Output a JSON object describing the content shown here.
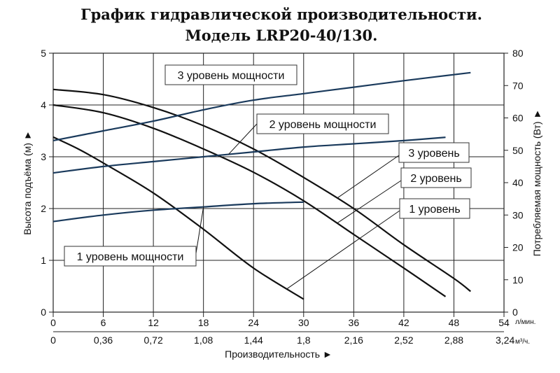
{
  "chart_data": {
    "type": "line",
    "title_line1": "График гидравлической производительности.",
    "title_line2": "Модель LRP20-40/130.",
    "xlabel": "Производительность ►",
    "x_unit_primary": "л/мин.",
    "x_unit_secondary_prefix": "3,24",
    "x_unit_secondary": "м³/ч.",
    "xlim": [
      0,
      54
    ],
    "x_ticks": [
      "0",
      "6",
      "12",
      "18",
      "24",
      "30",
      "36",
      "42",
      "48",
      "54"
    ],
    "x2_ticks": [
      "0",
      "0,36",
      "0,72",
      "1,08",
      "1,44",
      "1,8",
      "2,16",
      "2,52",
      "2,88"
    ],
    "ylabel_left": "Высота подъёма (м) ►",
    "ylim_left": [
      0,
      5
    ],
    "y_ticks_left": [
      "0",
      "1",
      "2",
      "3",
      "4",
      "5"
    ],
    "ylabel_right": "Потребляемая мощность (Вт) ►",
    "ylim_right": [
      0,
      80
    ],
    "y_ticks_right": [
      "0",
      "10",
      "20",
      "30",
      "40",
      "50",
      "60",
      "70",
      "80"
    ],
    "grid": true,
    "series": [
      {
        "name": "3 уровень",
        "kind": "head",
        "axis": "left",
        "points": [
          [
            0,
            4.3
          ],
          [
            6,
            4.2
          ],
          [
            12,
            3.95
          ],
          [
            18,
            3.6
          ],
          [
            24,
            3.15
          ],
          [
            30,
            2.6
          ],
          [
            36,
            2.0
          ],
          [
            42,
            1.3
          ],
          [
            48,
            0.65
          ],
          [
            50,
            0.4
          ]
        ]
      },
      {
        "name": "2 уровень",
        "kind": "head",
        "axis": "left",
        "points": [
          [
            0,
            4.0
          ],
          [
            6,
            3.85
          ],
          [
            12,
            3.55
          ],
          [
            18,
            3.15
          ],
          [
            24,
            2.7
          ],
          [
            30,
            2.15
          ],
          [
            36,
            1.5
          ],
          [
            42,
            0.85
          ],
          [
            47,
            0.3
          ]
        ]
      },
      {
        "name": "1 уровень",
        "kind": "head",
        "axis": "left",
        "points": [
          [
            0,
            3.38
          ],
          [
            3,
            3.15
          ],
          [
            6,
            2.88
          ],
          [
            12,
            2.3
          ],
          [
            18,
            1.6
          ],
          [
            24,
            0.85
          ],
          [
            30,
            0.25
          ]
        ]
      },
      {
        "name": "3 уровень мощности",
        "kind": "power",
        "axis": "right",
        "points": [
          [
            0,
            53
          ],
          [
            6,
            56
          ],
          [
            12,
            59
          ],
          [
            18,
            62.5
          ],
          [
            24,
            65.5
          ],
          [
            30,
            67.5
          ],
          [
            36,
            69.5
          ],
          [
            42,
            71.5
          ],
          [
            50,
            74
          ]
        ]
      },
      {
        "name": "2 уровень мощности",
        "kind": "power",
        "axis": "right",
        "points": [
          [
            0,
            43
          ],
          [
            6,
            45
          ],
          [
            12,
            46.5
          ],
          [
            18,
            48
          ],
          [
            24,
            49.5
          ],
          [
            30,
            51
          ],
          [
            36,
            52
          ],
          [
            42,
            53
          ],
          [
            47,
            54
          ]
        ]
      },
      {
        "name": "1 уровень мощности",
        "kind": "power",
        "axis": "right",
        "points": [
          [
            0,
            28
          ],
          [
            6,
            30
          ],
          [
            12,
            31.5
          ],
          [
            18,
            32.5
          ],
          [
            24,
            33.5
          ],
          [
            30,
            34
          ]
        ]
      }
    ]
  }
}
